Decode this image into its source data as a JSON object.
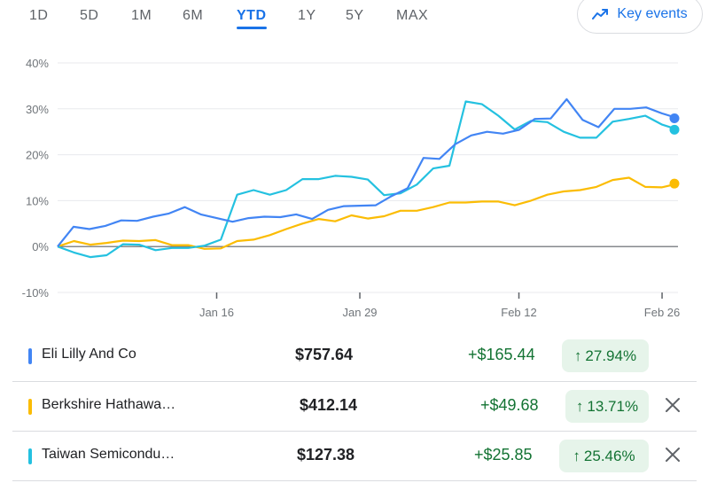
{
  "ranges": [
    "1D",
    "5D",
    "1M",
    "6M",
    "YTD",
    "1Y",
    "5Y",
    "MAX"
  ],
  "active_range": "YTD",
  "key_events_label": "Key events",
  "chart_data": {
    "type": "line",
    "y_ticks": [
      "40%",
      "30%",
      "20%",
      "10%",
      "0%",
      "-10%"
    ],
    "ylim": [
      -10,
      40
    ],
    "x_ticks": [
      "Jan 16",
      "Jan 29",
      "Feb 12",
      "Feb 26"
    ],
    "x_tick_index": [
      10,
      19,
      29,
      38
    ],
    "grid": true,
    "series": [
      {
        "name": "Eli Lilly And Co",
        "color": "#4285f4",
        "values": [
          0,
          4.3,
          3.8,
          4.5,
          5.7,
          5.6,
          6.5,
          7.2,
          8.6,
          7.0,
          6.2,
          5.4,
          6.2,
          6.5,
          6.4,
          7.0,
          6.0,
          8.0,
          8.8,
          8.9,
          9.0,
          11.0,
          12.7,
          19.3,
          19.1,
          22.3,
          24.2,
          25.0,
          24.6,
          25.4,
          27.8,
          27.9,
          32.1,
          27.6,
          26.0,
          30.0,
          30.0,
          30.3,
          29.0,
          27.94
        ]
      },
      {
        "name": "Berkshire Hathaway",
        "color": "#fbbc04",
        "values": [
          0,
          1.2,
          0.4,
          0.8,
          1.3,
          1.2,
          1.4,
          0.3,
          0.3,
          -0.5,
          -0.4,
          1.2,
          1.5,
          2.5,
          3.8,
          5.0,
          6.0,
          5.5,
          6.8,
          6.1,
          6.6,
          7.8,
          7.8,
          8.6,
          9.6,
          9.6,
          9.8,
          9.8,
          9.0,
          10.0,
          11.3,
          12.0,
          12.3,
          13.0,
          14.5,
          15.0,
          13.0,
          12.9,
          13.71
        ]
      },
      {
        "name": "Taiwan Semiconductor",
        "color": "#24c1e0",
        "values": [
          0,
          -1.3,
          -2.3,
          -1.9,
          0.5,
          0.4,
          -0.8,
          -0.3,
          -0.3,
          0.2,
          1.5,
          11.3,
          12.3,
          11.3,
          12.3,
          14.7,
          14.7,
          15.4,
          15.2,
          14.6,
          11.2,
          11.6,
          13.5,
          17.0,
          17.6,
          31.6,
          31.0,
          28.5,
          25.5,
          27.4,
          27.1,
          25.0,
          23.7,
          23.7,
          27.2,
          27.8,
          28.5,
          26.6,
          25.46
        ]
      }
    ]
  },
  "rows": [
    {
      "name": "Eli Lilly And Co",
      "price": "$757.64",
      "change": "+$165.44",
      "percent": "27.94%",
      "color": "#4285f4",
      "removable": false
    },
    {
      "name": "Berkshire Hathawa…",
      "price": "$412.14",
      "change": "+$49.68",
      "percent": "13.71%",
      "color": "#fbbc04",
      "removable": true
    },
    {
      "name": "Taiwan Semicondu…",
      "price": "$127.38",
      "change": "+$25.85",
      "percent": "25.46%",
      "color": "#24c1e0",
      "removable": true
    }
  ]
}
